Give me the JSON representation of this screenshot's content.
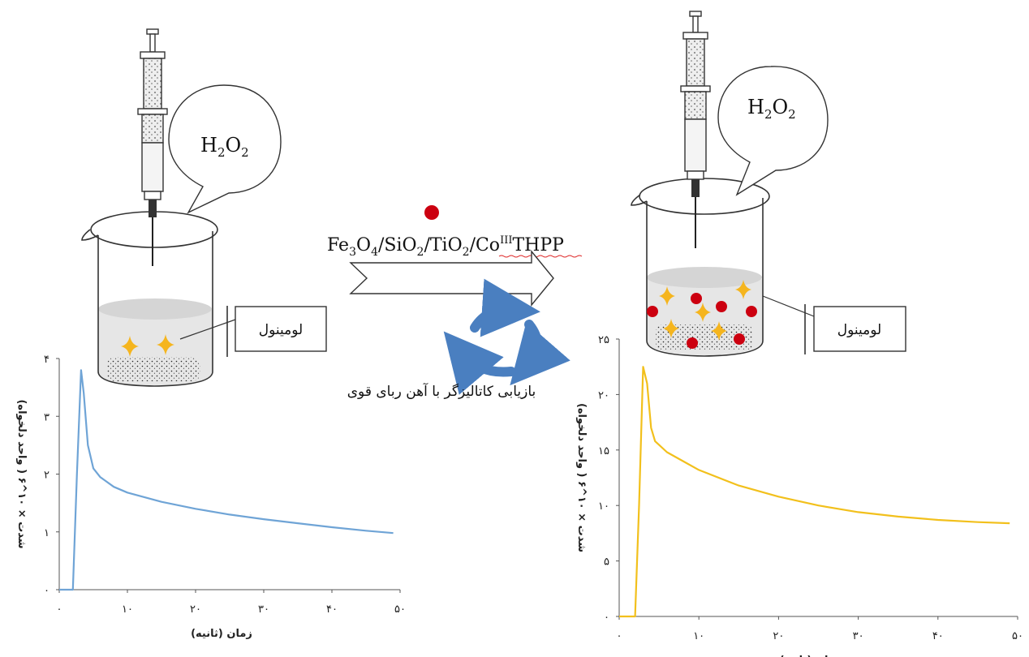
{
  "bubble_left": {
    "h": "H",
    "sub1": "2",
    "o": "O",
    "sub2": "2"
  },
  "bubble_right": {
    "h": "H",
    "sub1": "2",
    "o": "O",
    "sub2": "2"
  },
  "label_left": "لومینول",
  "label_right": "لومینول",
  "catalyst_formula": {
    "fe": "Fe",
    "s1": "3",
    "o1": "O",
    "s2": "4",
    "si": "/SiO",
    "s3": "2",
    "ti": "/TiO",
    "s4": "2",
    "co": "/Co",
    "sup": "III",
    "thpp": "THPP"
  },
  "recycle_caption": "بازیابی کاتالیزگر با آهن ربای قوی",
  "colors": {
    "left_curve": "#6fa4d6",
    "right_curve": "#f2c01c",
    "catalyst_dot": "#cc0010",
    "star": "#f5b51e",
    "recycle": "#4a7fc0"
  },
  "chart_data": [
    {
      "type": "line",
      "xlabel": "زمان (ثانیه)",
      "ylabel": "شدت × ۱۰^۶ ( واحد دلخواه)",
      "xlim": [
        0,
        50
      ],
      "ylim": [
        0,
        4
      ],
      "xticks": [
        "۰",
        "۱۰",
        "۲۰",
        "۳۰",
        "۴۰",
        "۵۰"
      ],
      "yticks": [
        "۰",
        "۱",
        "۲",
        "۳",
        "۴"
      ],
      "series": [
        {
          "x": [
            0,
            2,
            2.6,
            3.2,
            3.6,
            4.2,
            5,
            6,
            8,
            10,
            15,
            20,
            25,
            30,
            35,
            40,
            45,
            49
          ],
          "y": [
            0,
            0,
            2.0,
            3.8,
            3.4,
            2.5,
            2.1,
            1.95,
            1.78,
            1.68,
            1.52,
            1.4,
            1.3,
            1.22,
            1.15,
            1.08,
            1.02,
            0.98
          ]
        }
      ]
    },
    {
      "type": "line",
      "xlabel": "زمان (ثانیه)",
      "ylabel": "شدت × ۱۰^۶ ( واحد دلخواه)",
      "xlim": [
        0,
        50
      ],
      "ylim": [
        0,
        25
      ],
      "xticks": [
        "۰",
        "۱۰",
        "۲۰",
        "۳۰",
        "۴۰",
        "۵۰"
      ],
      "yticks": [
        "۰",
        "۵",
        "۱۰",
        "۱۵",
        "۲۰",
        "۲۵"
      ],
      "series": [
        {
          "x": [
            0,
            1,
            2,
            2.5,
            3.0,
            3.5,
            4.0,
            4.5,
            6,
            8,
            10,
            15,
            20,
            25,
            30,
            35,
            40,
            45,
            49
          ],
          "y": [
            0,
            0,
            0,
            10,
            22.5,
            21,
            17,
            15.8,
            14.8,
            14.0,
            13.2,
            11.8,
            10.8,
            10.0,
            9.4,
            9.0,
            8.7,
            8.5,
            8.4
          ]
        }
      ]
    }
  ]
}
